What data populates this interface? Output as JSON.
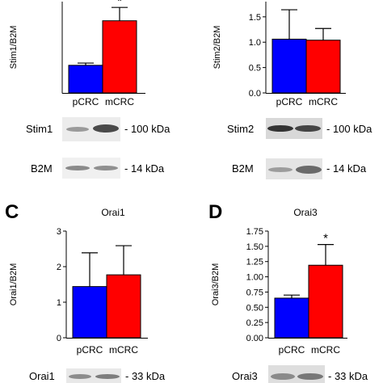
{
  "colors": {
    "pCRC": "#0000ff",
    "mCRC": "#ff0000",
    "axis": "#000000"
  },
  "panels": [
    {
      "id": "stim1",
      "letter": "",
      "title": "",
      "band_rows": [
        {
          "name": "Stim1",
          "size": "- 100 kDa"
        },
        {
          "name": "B2M",
          "size": "- 14 kDa"
        }
      ],
      "chart_data": {
        "type": "bar",
        "categories": [
          "pCRC",
          "mCRC"
        ],
        "values": [
          0.62,
          1.62
        ],
        "errors": [
          0.05,
          0.3
        ],
        "significance": [
          "",
          "*"
        ],
        "ylabel": "Stim1/B2M",
        "xlabel": "",
        "ylim": [
          0,
          2.05
        ],
        "yticks": [],
        "ytick_labels": [],
        "grid": false
      }
    },
    {
      "id": "stim2",
      "letter": "",
      "title": "",
      "band_rows": [
        {
          "name": "Stim2",
          "size": "- 100 kDa"
        },
        {
          "name": "B2M",
          "size": "- 14 kDa"
        }
      ],
      "chart_data": {
        "type": "bar",
        "categories": [
          "pCRC",
          "mCRC"
        ],
        "values": [
          1.06,
          1.04
        ],
        "errors": [
          0.58,
          0.23
        ],
        "significance": [
          "",
          ""
        ],
        "ylabel": "Stim2/B2M",
        "xlabel": "",
        "ylim": [
          0,
          1.8
        ],
        "yticks": [
          0.0,
          0.5,
          1.0,
          1.5
        ],
        "ytick_labels": [
          "0.0",
          "0.5",
          "1.0",
          "1.5"
        ],
        "grid": false
      }
    },
    {
      "id": "orai1",
      "letter": "C",
      "title": "Orai1",
      "band_rows": [
        {
          "name": "Orai1",
          "size": "- 33 kDa"
        }
      ],
      "chart_data": {
        "type": "bar",
        "categories": [
          "pCRC",
          "mCRC"
        ],
        "values": [
          1.44,
          1.77
        ],
        "errors": [
          0.95,
          0.82
        ],
        "significance": [
          "",
          ""
        ],
        "ylabel": "Orai1/B2M",
        "xlabel": "",
        "ylim": [
          0,
          3
        ],
        "yticks": [
          0,
          1,
          2,
          3
        ],
        "ytick_labels": [
          "0",
          "1",
          "2",
          "3"
        ],
        "grid": false
      }
    },
    {
      "id": "orai3",
      "letter": "D",
      "title": "Orai3",
      "band_rows": [
        {
          "name": "Orai3",
          "size": "- 33 kDa"
        }
      ],
      "chart_data": {
        "type": "bar",
        "categories": [
          "pCRC",
          "mCRC"
        ],
        "values": [
          0.65,
          1.19
        ],
        "errors": [
          0.05,
          0.34
        ],
        "significance": [
          "",
          "*"
        ],
        "ylabel": "Orai3/B2M",
        "xlabel": "",
        "ylim": [
          0,
          1.75
        ],
        "yticks": [
          0.0,
          0.25,
          0.5,
          0.75,
          1.0,
          1.25,
          1.5,
          1.75
        ],
        "ytick_labels": [
          "0.00",
          "0.25",
          "0.50",
          "0.75",
          "1.00",
          "1.25",
          "1.50",
          "1.75"
        ],
        "grid": false
      }
    }
  ]
}
